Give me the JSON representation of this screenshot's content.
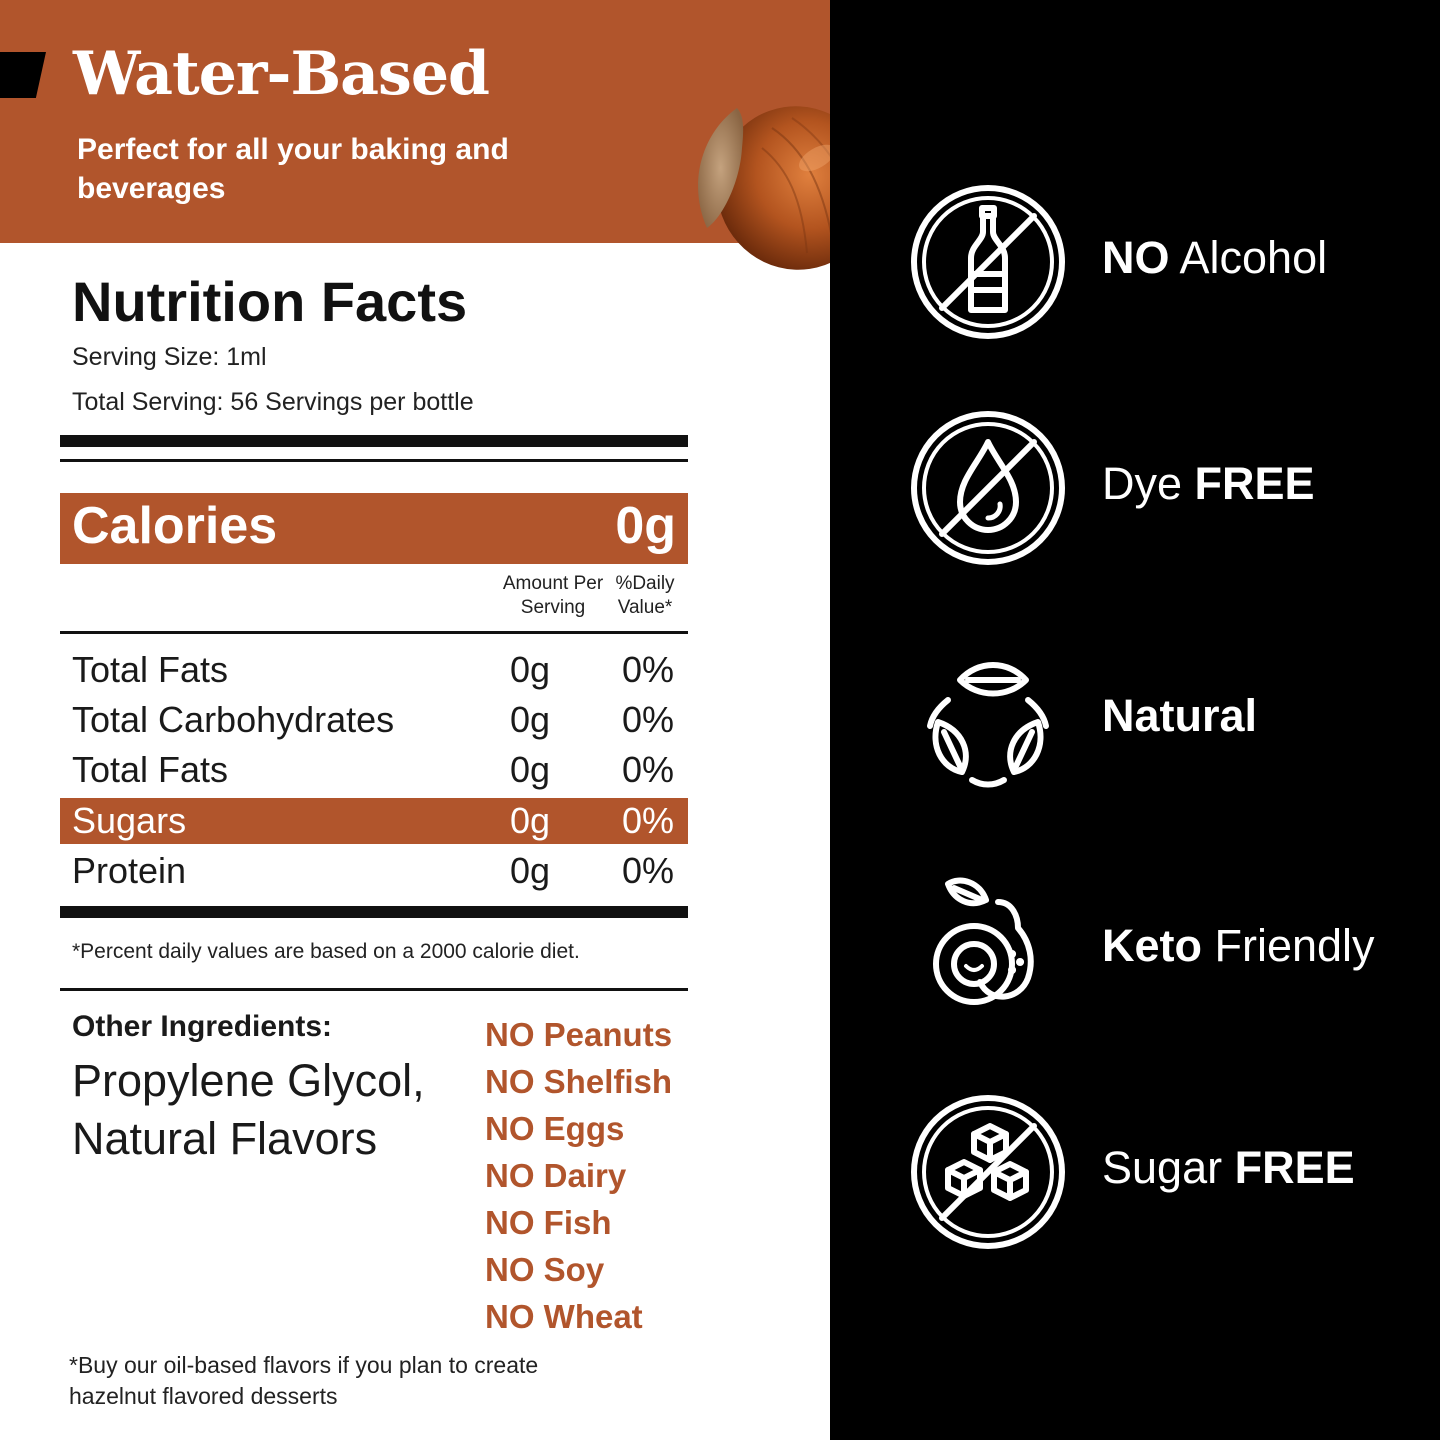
{
  "header": {
    "title": "Water-Based",
    "subtitle": "Perfect for all your baking and beverages"
  },
  "nutrition": {
    "title": "Nutrition Facts",
    "serving_size": "Serving Size: 1ml",
    "total_serving": "Total Serving: 56 Servings per bottle",
    "calories_label": "Calories",
    "calories_value": "0g",
    "col_amount": "Amount Per Serving",
    "col_daily": "%Daily Value*",
    "rows": [
      {
        "name": "Total Fats",
        "amount": "0g",
        "pct": "0%"
      },
      {
        "name": "Total Carbohydrates",
        "amount": "0g",
        "pct": "0%"
      },
      {
        "name": "Total Fats",
        "amount": "0g",
        "pct": "0%"
      },
      {
        "name": "Sugars",
        "amount": "0g",
        "pct": "0%"
      },
      {
        "name": "Protein",
        "amount": "0g",
        "pct": "0%"
      }
    ],
    "footnote": "*Percent daily values are based on a 2000 calorie diet."
  },
  "ingredients": {
    "label": "Other Ingredients:",
    "text": "Propylene Glycol, Natural Flavors",
    "allergens": [
      "NO Peanuts",
      "NO Shelfish",
      "NO Eggs",
      "NO Dairy",
      "NO Fish",
      "NO Soy",
      "NO Wheat"
    ]
  },
  "bottom_note": "*Buy our oil-based flavors if you plan to create hazelnut flavored desserts",
  "features": [
    {
      "icon": "no-alcohol-icon",
      "bold_prefix": "NO",
      "text": " Alcohol",
      "bold_suffix": ""
    },
    {
      "icon": "dye-free-icon",
      "bold_prefix": "",
      "text": "Dye ",
      "bold_suffix": "FREE"
    },
    {
      "icon": "natural-leaves-icon",
      "bold_prefix": "Natural",
      "text": "",
      "bold_suffix": ""
    },
    {
      "icon": "keto-avocado-icon",
      "bold_prefix": "Keto",
      "text": " Friendly",
      "bold_suffix": ""
    },
    {
      "icon": "sugar-free-icon",
      "bold_prefix": "",
      "text": "Sugar ",
      "bold_suffix": "FREE"
    }
  ],
  "colors": {
    "accent": "#b1552c",
    "dark": "#000000",
    "text": "#1a1a1a"
  }
}
